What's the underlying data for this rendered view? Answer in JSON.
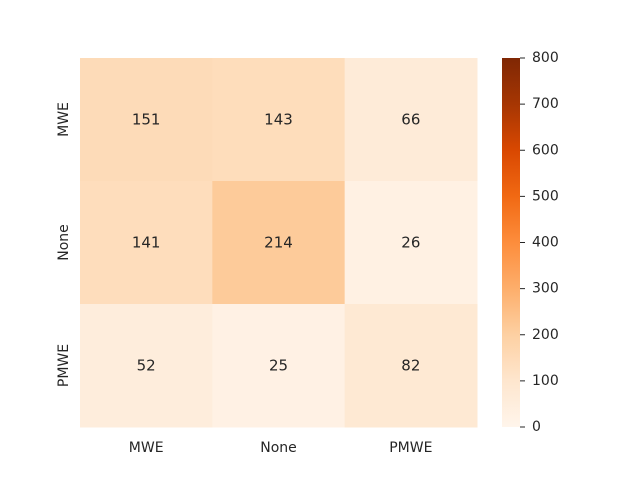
{
  "chart_data": {
    "type": "heatmap",
    "x_categories": [
      "MWE",
      "None",
      "PMWE"
    ],
    "y_categories": [
      "MWE",
      "None",
      "PMWE"
    ],
    "values": [
      [
        151,
        143,
        66
      ],
      [
        141,
        214,
        26
      ],
      [
        52,
        25,
        82
      ]
    ],
    "title": "",
    "xlabel": "",
    "ylabel": "",
    "colormap": "Oranges",
    "colorbar": {
      "min": 0,
      "max": 800,
      "ticks": [
        0,
        100,
        200,
        300,
        400,
        500,
        600,
        700,
        800
      ]
    },
    "colors": {
      "low": "#fff5eb",
      "high": "#7f2704",
      "text": "#262626"
    }
  }
}
